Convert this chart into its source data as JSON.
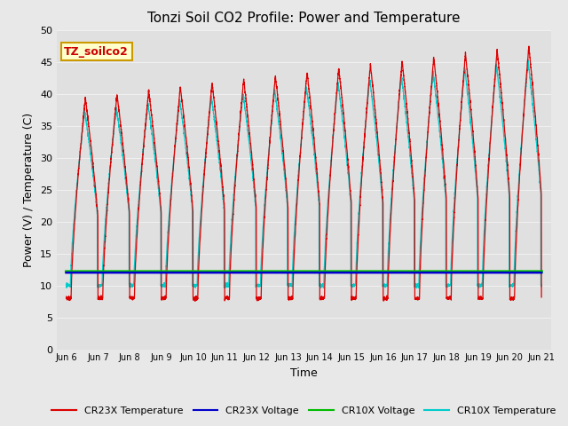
{
  "title": "Tonzi Soil CO2 Profile: Power and Temperature",
  "xlabel": "Time",
  "ylabel": "Power (V) / Temperature (C)",
  "ylim": [
    0,
    50
  ],
  "xlim_start": 5.7,
  "xlim_end": 21.3,
  "fig_bg_color": "#e8e8e8",
  "plot_bg_color": "#e0e0e0",
  "grid_color": "#f0f0f0",
  "annotation_text": "TZ_soilco2",
  "annotation_box_color": "#ffffcc",
  "annotation_box_edge": "#cc9900",
  "annotation_text_color": "#cc0000",
  "cr23x_temp_color": "#dd0000",
  "cr23x_volt_color": "#0000cc",
  "cr10x_volt_color": "#00bb00",
  "cr10x_temp_color": "#00cccc",
  "xtick_labels": [
    "Jun 6",
    "Jun 7",
    "Jun 8",
    "Jun 9",
    "Jun 10",
    "Jun 11",
    "Jun 12",
    "Jun 13",
    "Jun 14",
    "Jun 15",
    "Jun 16",
    "Jun 17",
    "Jun 18",
    "Jun 19",
    "Jun 20",
    "Jun 21"
  ],
  "xtick_positions": [
    6,
    7,
    8,
    9,
    10,
    11,
    12,
    13,
    14,
    15,
    16,
    17,
    18,
    19,
    20,
    21
  ],
  "ytick_positions": [
    0,
    5,
    10,
    15,
    20,
    25,
    30,
    35,
    40,
    45,
    50
  ],
  "legend_labels": [
    "CR23X Temperature",
    "CR23X Voltage",
    "CR10X Voltage",
    "CR10X Temperature"
  ],
  "legend_colors": [
    "#dd0000",
    "#0000cc",
    "#00bb00",
    "#00cccc"
  ]
}
